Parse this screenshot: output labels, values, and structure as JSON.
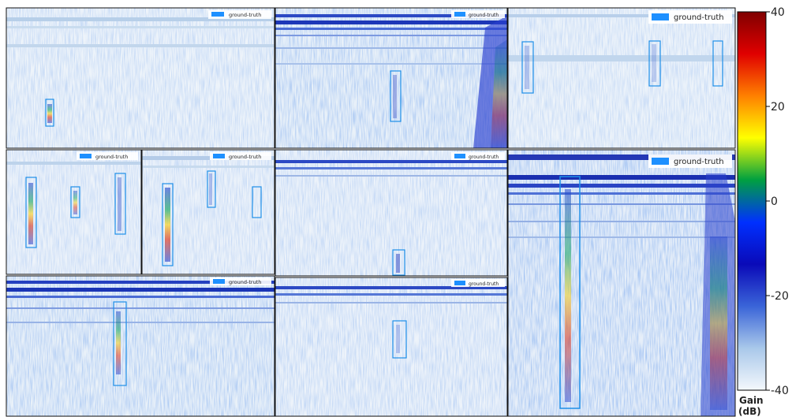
{
  "legend": {
    "label": "ground-truth",
    "swatch_color": "#1e90ff"
  },
  "box_color": "#1e8fe8",
  "colorbar": {
    "ticks": [
      40,
      20,
      0,
      -20,
      -40
    ],
    "range": [
      -40,
      40
    ],
    "label_line1": "Gain",
    "label_line2": "(dB)",
    "colors": [
      "#f4f8fc",
      "#a9c8ea",
      "#3a64d8",
      "#0a0ab8",
      "#0030ff",
      "#00a040",
      "#ffff00",
      "#ff8000",
      "#e00000",
      "#800000"
    ]
  },
  "panels": [
    {
      "id": "p1",
      "boxes": 1
    },
    {
      "id": "p2",
      "boxes": 1
    },
    {
      "id": "p3",
      "boxes": 3
    },
    {
      "id": "p4",
      "boxes": 3
    },
    {
      "id": "p5",
      "boxes": 3
    },
    {
      "id": "p6",
      "boxes": 1
    },
    {
      "id": "p7",
      "boxes": 1
    },
    {
      "id": "p8",
      "boxes": 1
    },
    {
      "id": "p9",
      "boxes": 1
    }
  ]
}
